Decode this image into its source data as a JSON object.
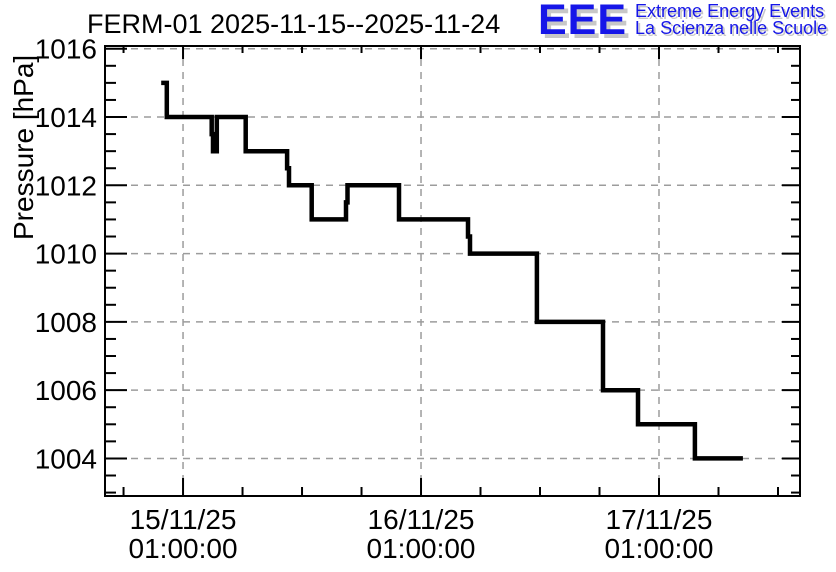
{
  "header": {
    "title": "FERM-01 2025-11-15--2025-11-24"
  },
  "logo": {
    "acronym": "EEE",
    "line1": "Extreme Energy Events",
    "line2": "La Scienza nelle Scuole",
    "blue": "#1616e8",
    "shadow_gray": "#c7c7c7"
  },
  "chart_data": {
    "type": "line",
    "subtype": "step",
    "title": "FERM-01 2025-11-15--2025-11-24",
    "xlabel": "",
    "ylabel": "Pressure [hPa]",
    "grid": true,
    "grid_color": "#9c9c9c",
    "line_color": "#000000",
    "legend": "none",
    "x_axis": {
      "unit": "hours since 15/11/25 00:00:00",
      "range": [
        -6.87,
        63.22
      ],
      "minor_tick_step_hours": 6,
      "minor_ticks": [
        -5,
        7,
        13,
        19,
        31,
        37,
        43,
        55,
        61
      ],
      "major_ticks": [
        {
          "t": 1,
          "label_date": "15/11/25",
          "label_time": "01:00:00"
        },
        {
          "t": 25,
          "label_date": "16/11/25",
          "label_time": "01:00:00"
        },
        {
          "t": 49,
          "label_date": "17/11/25",
          "label_time": "01:00:00"
        }
      ]
    },
    "y_axis": {
      "range": [
        1002.9,
        1016.08
      ],
      "major_ticks": [
        1004,
        1006,
        1008,
        1010,
        1012,
        1014,
        1016
      ],
      "minor_tick_step": 0.5
    },
    "series": [
      {
        "name": "pressure",
        "points": [
          {
            "time": "14/11/25 22:48",
            "t": -1.2,
            "hPa": 1015
          },
          {
            "time": "14/11/25 23:22",
            "t": -0.64,
            "hPa": 1014
          },
          {
            "time": "15/11/25 03:53",
            "t": 3.89,
            "hPa": 1013.5
          },
          {
            "time": "15/11/25 04:01",
            "t": 4.02,
            "hPa": 1013
          },
          {
            "time": "15/11/25 04:24",
            "t": 4.4,
            "hPa": 1014
          },
          {
            "time": "15/11/25 07:19",
            "t": 7.32,
            "hPa": 1013
          },
          {
            "time": "15/11/25 11:29",
            "t": 11.49,
            "hPa": 1012.5
          },
          {
            "time": "15/11/25 11:41",
            "t": 11.69,
            "hPa": 1012
          },
          {
            "time": "15/11/25 13:59",
            "t": 13.98,
            "hPa": 1011
          },
          {
            "time": "15/11/25 17:26",
            "t": 17.43,
            "hPa": 1011.5
          },
          {
            "time": "15/11/25 17:35",
            "t": 17.59,
            "hPa": 1012
          },
          {
            "time": "15/11/25 22:47",
            "t": 22.78,
            "hPa": 1011
          },
          {
            "time": "16/11/25 05:44",
            "t": 29.74,
            "hPa": 1010.5
          },
          {
            "time": "16/11/25 05:56",
            "t": 29.94,
            "hPa": 1010
          },
          {
            "time": "16/11/25 12:41",
            "t": 36.69,
            "hPa": 1008
          },
          {
            "time": "16/11/25 19:21",
            "t": 43.35,
            "hPa": 1006
          },
          {
            "time": "16/11/25 22:53",
            "t": 46.88,
            "hPa": 1005
          },
          {
            "time": "17/11/25 04:37",
            "t": 52.62,
            "hPa": 1004
          },
          {
            "time": "17/11/25 09:28",
            "t": 57.46,
            "hPa": 1004
          }
        ]
      }
    ]
  }
}
